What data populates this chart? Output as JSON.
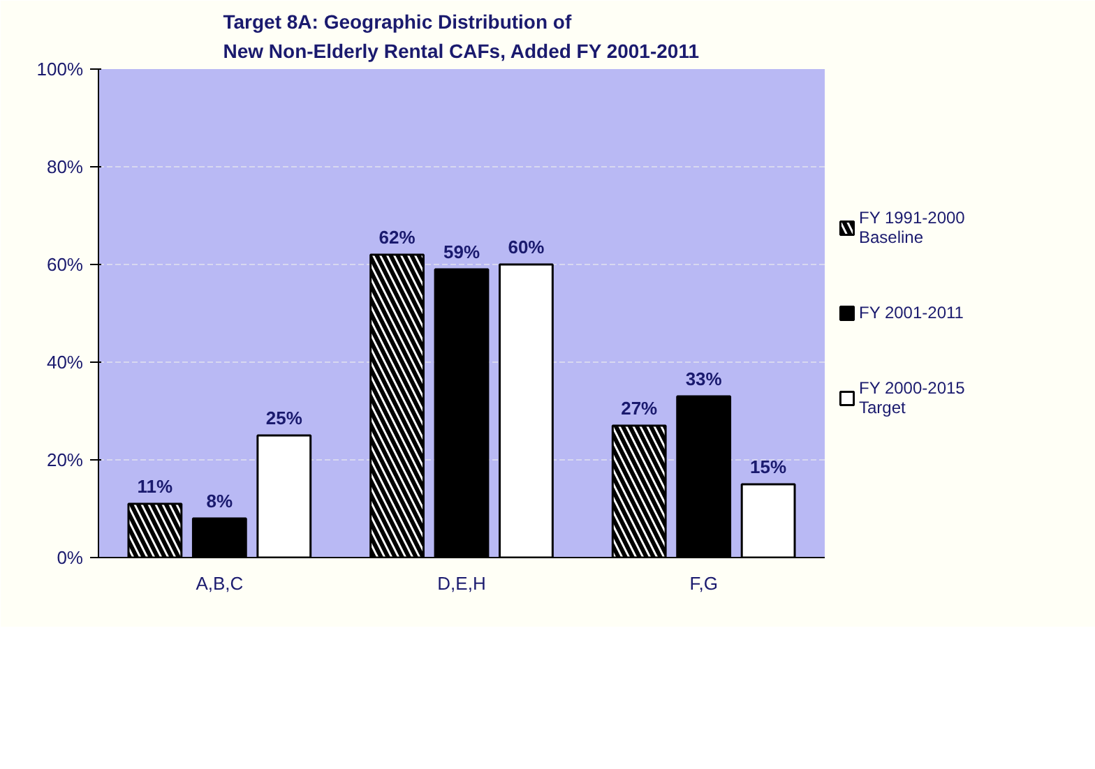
{
  "chart_data": {
    "type": "bar",
    "title": "Target 8A: Geographic Distribution of\nNew Non-Elderly Rental CAFs, Added FY 2001-2011",
    "categories": [
      "A,B,C",
      "D,E,H",
      "F,G"
    ],
    "series": [
      {
        "name": "FY 1991-2000\nBaseline",
        "color": "#ffffff",
        "values": [
          11,
          62,
          27
        ]
      },
      {
        "name": "FY 2001-2011",
        "color": "#000000",
        "values": [
          8,
          59,
          33
        ]
      },
      {
        "name": "FY 2000-2015\nTarget",
        "color": "#ffffff",
        "values": [
          25,
          60,
          15
        ]
      }
    ],
    "ylim": [
      0,
      100
    ],
    "yticks": [
      {
        "value": 0,
        "label": "0%"
      },
      {
        "value": 20,
        "label": "20%"
      },
      {
        "value": 40,
        "label": "40%"
      },
      {
        "value": 60,
        "label": "60%"
      },
      {
        "value": 80,
        "label": "80%"
      },
      {
        "value": 100,
        "label": "100%"
      }
    ],
    "value_labels": [
      [
        "11%",
        "62%",
        "27%"
      ],
      [
        "8%",
        "59%",
        "33%"
      ],
      [
        "25%",
        "60%",
        "15%"
      ]
    ],
    "grid": "y",
    "legend": "right"
  }
}
